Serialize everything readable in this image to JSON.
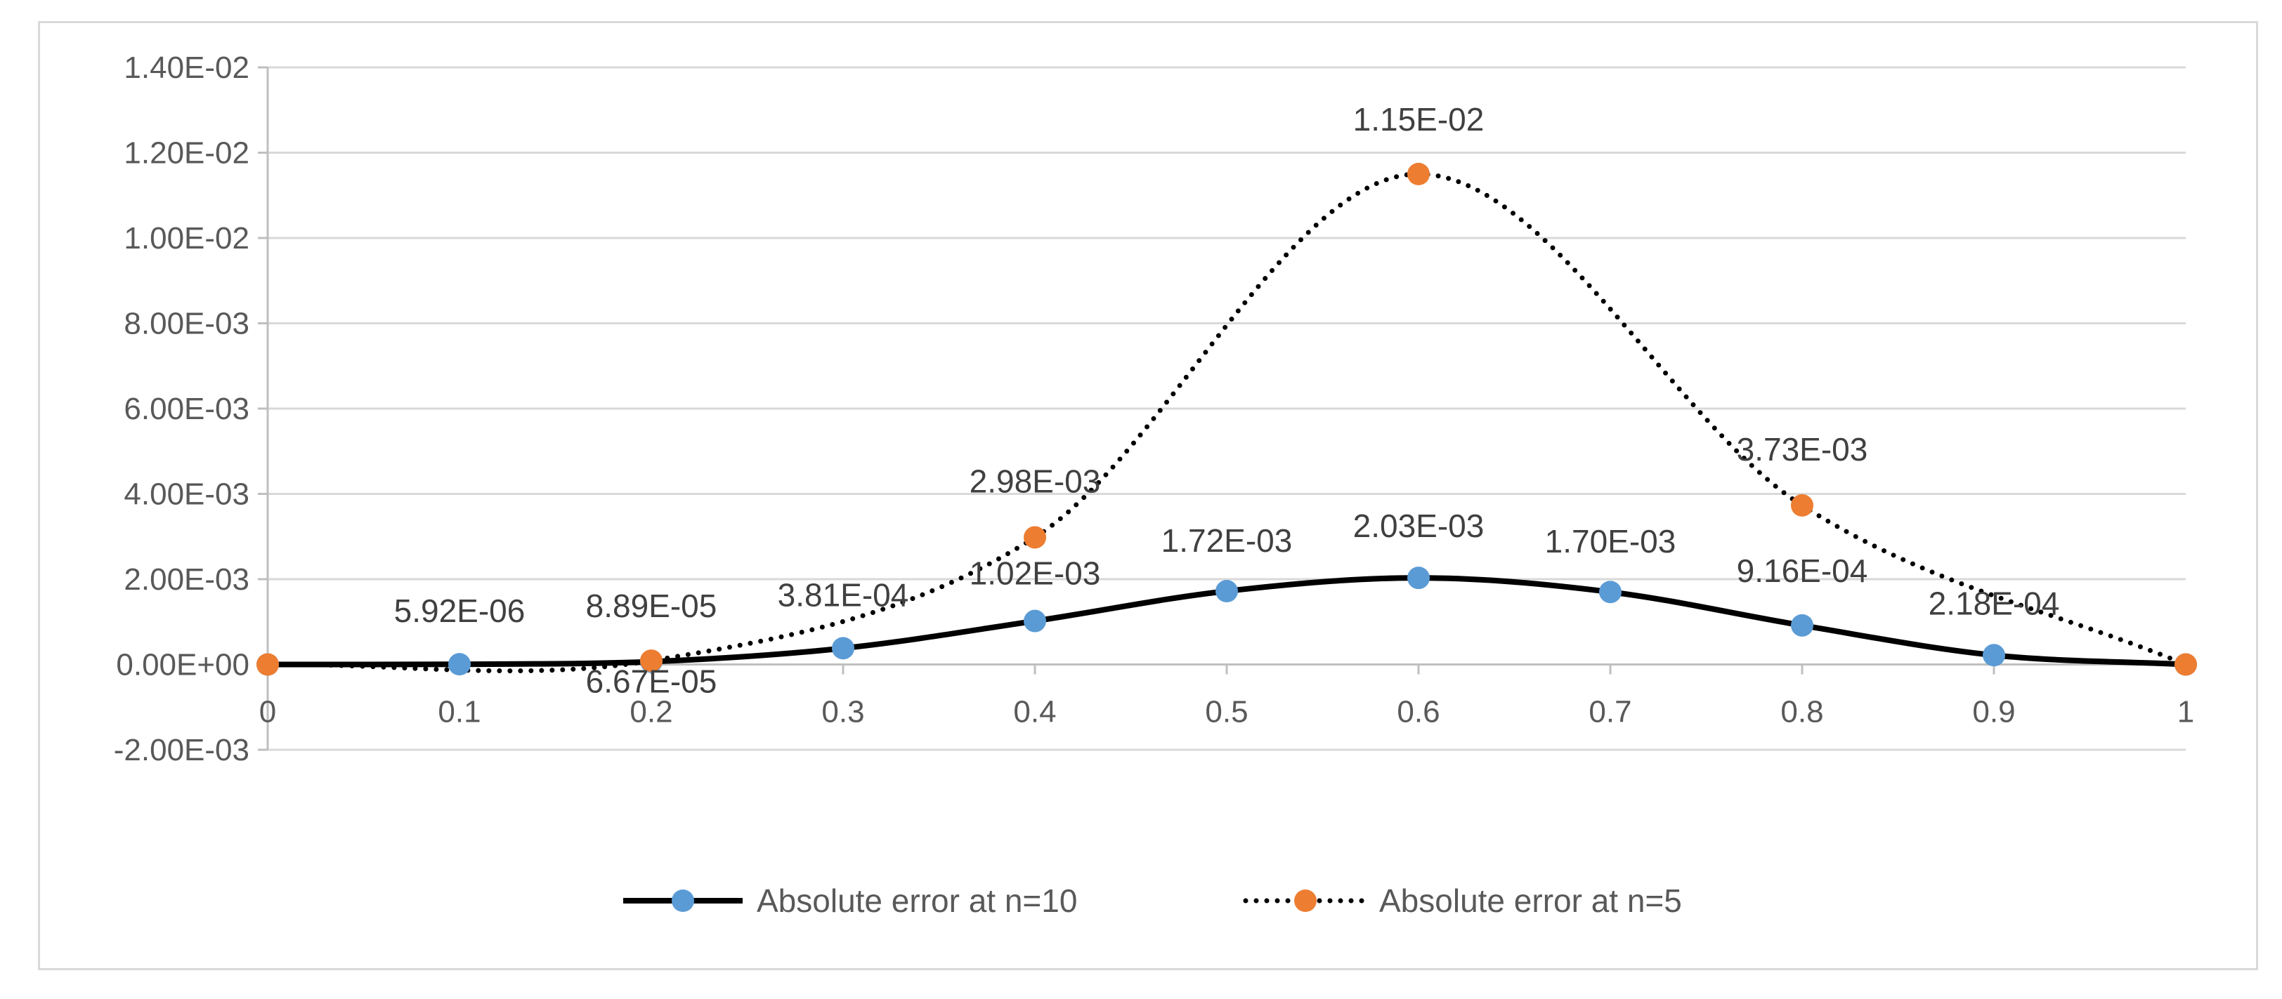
{
  "chart_data": {
    "type": "line",
    "x": [
      0,
      0.1,
      0.2,
      0.3,
      0.4,
      0.5,
      0.6,
      0.7,
      0.8,
      0.9,
      1
    ],
    "x_tick_labels": [
      "0",
      "0.1",
      "0.2",
      "0.3",
      "0.4",
      "0.5",
      "0.6",
      "0.7",
      "0.8",
      "0.9",
      "1"
    ],
    "ylim": [
      -0.002,
      0.014
    ],
    "y_ticks": [
      -0.002,
      0,
      0.002,
      0.004,
      0.006,
      0.008,
      0.01,
      0.012,
      0.014
    ],
    "y_tick_labels": [
      "-2.00E-03",
      "0.00E+00",
      "2.00E-03",
      "4.00E-03",
      "6.00E-03",
      "8.00E-03",
      "1.00E-02",
      "1.20E-02",
      "1.40E-02"
    ],
    "grid": true,
    "legend_position": "bottom",
    "series": [
      {
        "name": "Absolute error at  n=10",
        "line_style": "solid",
        "line_color": "#000000",
        "marker_color": "#5b9bd5",
        "x": [
          0,
          0.1,
          0.2,
          0.3,
          0.4,
          0.5,
          0.6,
          0.7,
          0.8,
          0.9,
          1
        ],
        "values": [
          0,
          5.92e-06,
          6.67e-05,
          0.000381,
          0.00102,
          0.00172,
          0.00203,
          0.0017,
          0.000916,
          0.000218,
          0
        ],
        "labels": [
          "",
          "5.92E-06",
          "6.67E-05",
          "3.81E-04",
          "1.02E-03",
          "1.72E-03",
          "2.03E-03",
          "1.70E-03",
          "9.16E-04",
          "2.18E-04",
          ""
        ]
      },
      {
        "name": "Absolute error at  n=5",
        "line_style": "dotted",
        "line_color": "#000000",
        "marker_color": "#ed7d31",
        "x": [
          0,
          0.2,
          0.4,
          0.6,
          0.8,
          1
        ],
        "values": [
          0,
          8.89e-05,
          0.00298,
          0.0115,
          0.00373,
          0
        ],
        "labels": [
          "",
          "8.89E-05",
          "2.98E-03",
          "1.15E-02",
          "3.73E-03",
          ""
        ]
      }
    ]
  }
}
